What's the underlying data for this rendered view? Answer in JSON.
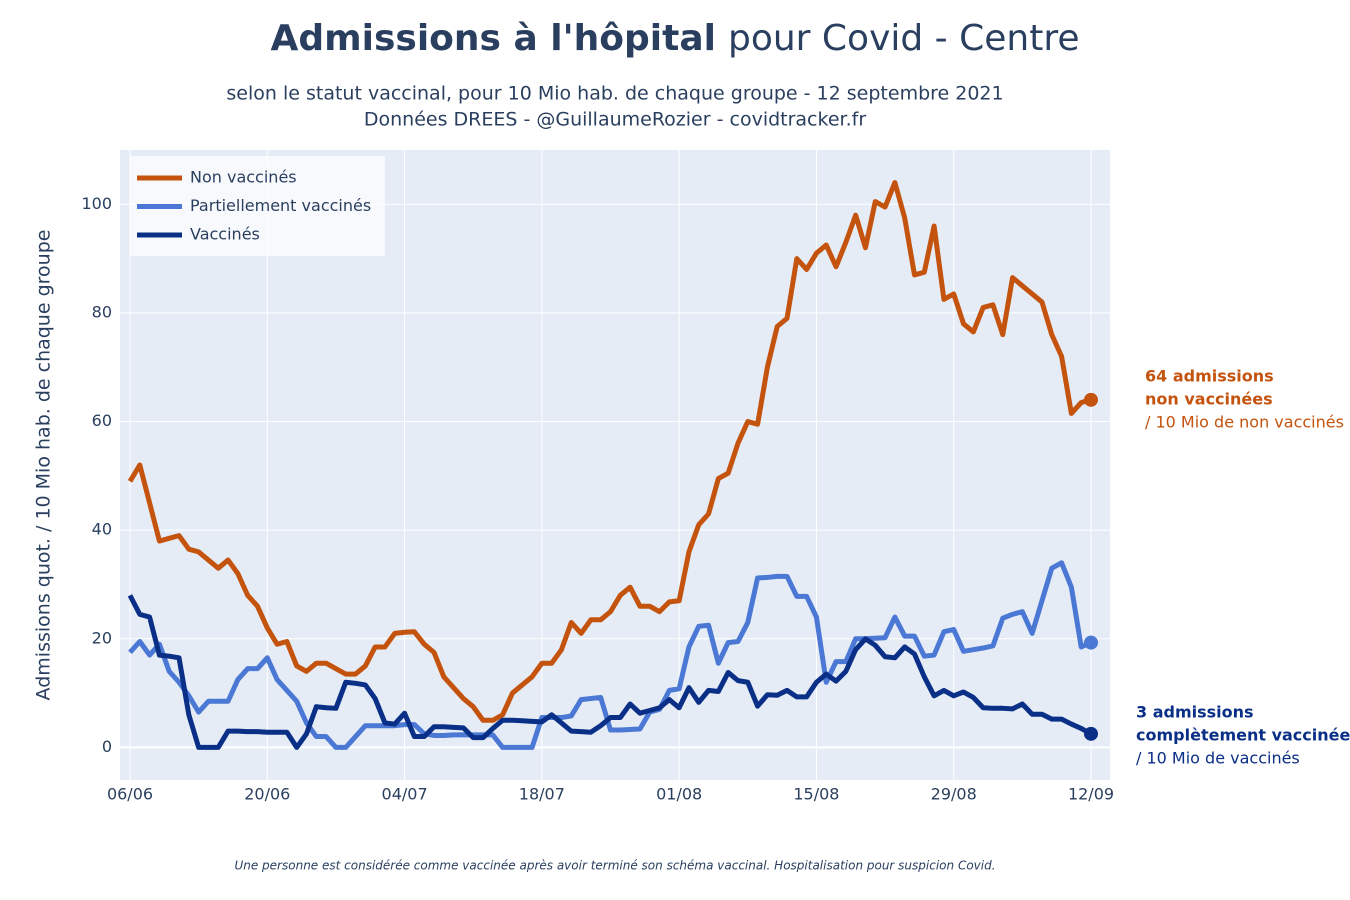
{
  "chart_data": {
    "type": "line",
    "title": [
      "Admissions à l'hôpital",
      "pour Covid - Centre"
    ],
    "subtitle": [
      "selon le statut vaccinal, pour 10 Mio hab. de chaque groupe - 12 septembre 2021",
      "Données DREES - @GuillaumeRozier - covidtracker.fr"
    ],
    "y_label": "Admissions quot. / 10 Mio hab. de chaque groupe",
    "footnote": "Une personne est considérée comme vaccinée après avoir terminé son schéma vaccinal. Hospitalisation pour suspicion Covid.",
    "categories": [
      "06/06",
      null,
      null,
      null,
      null,
      null,
      null,
      null,
      null,
      null,
      null,
      null,
      null,
      null,
      "20/06",
      null,
      null,
      null,
      null,
      null,
      null,
      null,
      null,
      null,
      null,
      null,
      null,
      null,
      "04/07",
      null,
      null,
      null,
      null,
      null,
      null,
      null,
      null,
      null,
      null,
      null,
      null,
      null,
      "18/07",
      null,
      null,
      null,
      null,
      null,
      null,
      null,
      null,
      null,
      null,
      null,
      null,
      null,
      "01/08",
      null,
      null,
      null,
      null,
      null,
      null,
      null,
      null,
      null,
      null,
      null,
      null,
      null,
      "15/08",
      null,
      null,
      null,
      null,
      null,
      null,
      null,
      null,
      null,
      null,
      null,
      null,
      null,
      "29/08",
      null,
      null,
      null,
      null,
      null,
      null,
      null,
      null,
      null,
      null,
      null,
      null,
      null,
      "12/09"
    ],
    "series": [
      {
        "name": "Non vaccinés",
        "color": "#c4530e",
        "values": [
          49,
          52,
          45,
          38,
          38.5,
          39,
          36.5,
          36,
          34.5,
          33,
          34.5,
          32,
          28,
          26,
          22,
          19,
          19.5,
          15,
          14,
          15.5,
          15.5,
          14.5,
          13.5,
          13.5,
          15,
          18.5,
          18.5,
          21,
          21.2,
          21.3,
          19,
          17.5,
          13,
          11,
          9,
          7.5,
          5,
          5,
          6,
          10,
          11.5,
          13,
          15.5,
          15.5,
          18,
          23,
          21,
          23.5,
          23.5,
          25,
          28,
          29.5,
          26,
          26,
          25,
          26.8,
          27,
          36,
          41,
          43,
          49.5,
          50.5,
          56,
          60,
          59.5,
          70,
          77.5,
          79,
          90,
          88,
          91,
          92.5,
          88.5,
          93,
          98,
          92,
          100.5,
          99.5,
          104,
          97.5,
          87,
          87.5,
          96,
          82.5,
          83.5,
          78,
          76.5,
          81,
          81.5,
          76,
          86.5,
          85,
          83.5,
          82,
          76,
          72,
          61.5,
          63.5,
          64
        ]
      },
      {
        "name": "Partiellement vaccinés",
        "color": "#4a78d4",
        "values": [
          17.5,
          19.5,
          17,
          19,
          14,
          12,
          9.5,
          6.5,
          8.5,
          8.5,
          8.5,
          12.5,
          14.5,
          14.5,
          16.5,
          12.5,
          10.5,
          8.5,
          4.5,
          2,
          2,
          0,
          0,
          2,
          4,
          4,
          4,
          4,
          4.2,
          4.2,
          2.5,
          2.2,
          2.2,
          2.3,
          2.3,
          2.3,
          2.3,
          2.3,
          0,
          0,
          0,
          0,
          5.5,
          5.5,
          5.5,
          5.8,
          8.8,
          9,
          9.2,
          3.2,
          3.2,
          3.3,
          3.4,
          6.5,
          7,
          10.5,
          10.8,
          18.5,
          22.3,
          22.5,
          15.5,
          19.3,
          19.5,
          23,
          31.2,
          31.3,
          31.5,
          31.5,
          27.8,
          27.8,
          24,
          12,
          15.8,
          15.8,
          20,
          20,
          20.1,
          20.2,
          24,
          20.5,
          20.5,
          16.8,
          17,
          21.3,
          21.7,
          17.7,
          18,
          18.3,
          18.7,
          23.8,
          24.5,
          25,
          21,
          27,
          33,
          34,
          29.5,
          18.5,
          19.3
        ]
      },
      {
        "name": "Vaccinés",
        "color": "#0a2f86",
        "values": [
          28,
          24.5,
          24,
          17,
          16.8,
          16.5,
          6,
          0,
          0,
          0,
          3,
          3,
          2.9,
          2.9,
          2.8,
          2.8,
          2.8,
          0,
          2.5,
          7.5,
          7.3,
          7.2,
          12,
          11.8,
          11.5,
          9,
          4.5,
          4.3,
          6.3,
          2,
          2,
          3.8,
          3.8,
          3.7,
          3.6,
          1.8,
          1.8,
          3.5,
          5,
          5,
          4.9,
          4.8,
          4.7,
          6,
          4.5,
          3,
          2.9,
          2.8,
          4,
          5.5,
          5.5,
          8,
          6.3,
          6.8,
          7.3,
          8.8,
          7.3,
          11,
          8.3,
          10.5,
          10.3,
          13.8,
          12.3,
          12,
          7.6,
          9.7,
          9.6,
          10.5,
          9.3,
          9.3,
          12,
          13.5,
          12.2,
          14,
          18,
          20,
          18.8,
          16.7,
          16.5,
          18.5,
          17.2,
          13,
          9.5,
          10.5,
          9.5,
          10.2,
          9.2,
          7.3,
          7.2,
          7.2,
          7.1,
          8,
          6.1,
          6.1,
          5.2,
          5.2,
          4.3,
          3.5,
          2.5
        ]
      }
    ],
    "annotations": [
      {
        "lines": [
          "64 admissions",
          "non vaccinées",
          "/ 10 Mio de non vaccinés"
        ],
        "color": "#c4530e"
      },
      {
        "lines": [
          "3 admissions",
          "complètement vaccinée",
          "/ 10 Mio de vaccinés"
        ],
        "color": "#0a2f86"
      }
    ],
    "ylim": [
      -6,
      110
    ],
    "yticks": [
      0,
      20,
      40,
      60,
      80,
      100
    ],
    "grid": true,
    "legend": "top-left"
  }
}
